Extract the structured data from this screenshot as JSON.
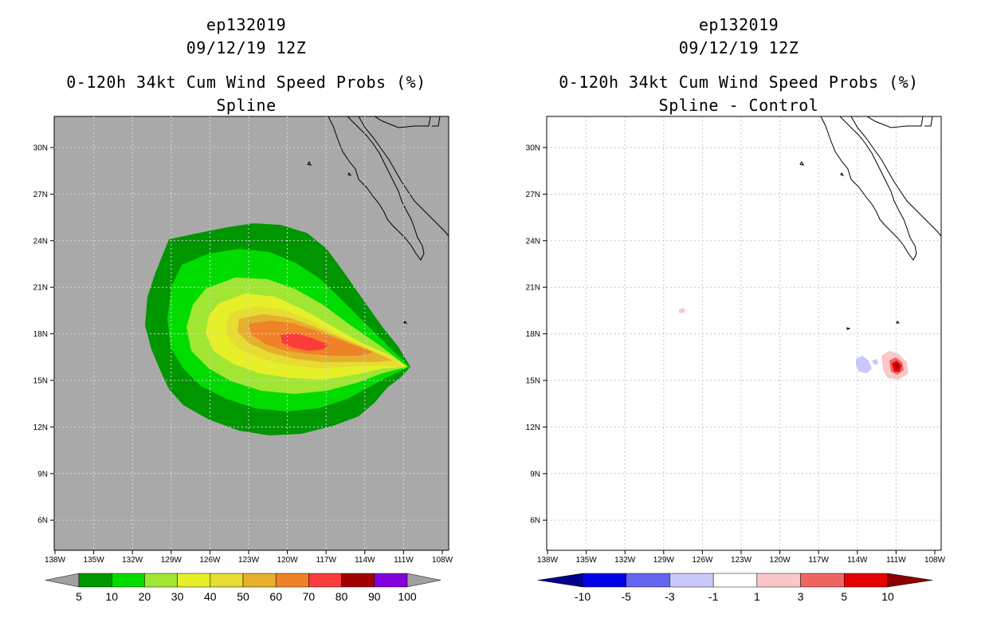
{
  "left_panel": {
    "title_lines": [
      "ep132019",
      "09/12/19 12Z",
      "0-120h 34kt Cum Wind Speed Probs (%)",
      "Spline"
    ],
    "lat_labels": [
      "30N",
      "27N",
      "24N",
      "21N",
      "18N",
      "15N",
      "12N",
      "9N",
      "6N"
    ],
    "lon_labels": [
      "138W",
      "135W",
      "132W",
      "129W",
      "126W",
      "123W",
      "120W",
      "117W",
      "114W",
      "111W",
      "108W"
    ],
    "colorbar": {
      "labels": [
        "5",
        "10",
        "20",
        "30",
        "40",
        "50",
        "60",
        "70",
        "80",
        "90",
        "100"
      ],
      "colors": [
        "#a0a0a0",
        "#009600",
        "#00dc00",
        "#a0e632",
        "#e6f028",
        "#e6dc32",
        "#e6af2d",
        "#f08228",
        "#fa3c3c",
        "#a00000",
        "#8200dc",
        "#a0a0a0"
      ]
    }
  },
  "right_panel": {
    "title_lines": [
      "ep132019",
      "09/12/19 12Z",
      "0-120h 34kt Cum Wind Speed Probs (%)",
      "Spline - Control"
    ],
    "lat_labels": [
      "30N",
      "27N",
      "24N",
      "21N",
      "18N",
      "15N",
      "12N",
      "9N",
      "6N"
    ],
    "lon_labels": [
      "138W",
      "135W",
      "132W",
      "129W",
      "126W",
      "123W",
      "120W",
      "117W",
      "114W",
      "111W",
      "108W"
    ],
    "colorbar": {
      "labels": [
        "-10",
        "-5",
        "-3",
        "-1",
        "1",
        "3",
        "5",
        "10"
      ],
      "colors": [
        "#00008c",
        "#0000e6",
        "#6464f0",
        "#c8c8fa",
        "#ffffff",
        "#fac8c8",
        "#f06464",
        "#e60000",
        "#8c0000"
      ]
    }
  }
}
